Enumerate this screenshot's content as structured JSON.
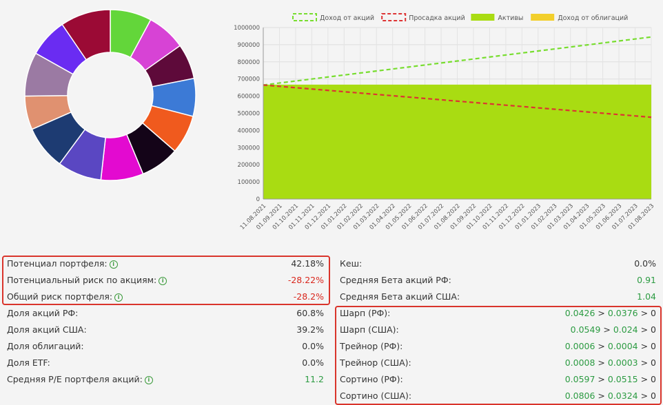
{
  "chart_data": [
    {
      "type": "pie",
      "donut": true,
      "slices": [
        {
          "value": 8.0,
          "color": "#63d63a"
        },
        {
          "value": 7.5,
          "color": "#d743d5"
        },
        {
          "value": 6.8,
          "color": "#5e0a3a"
        },
        {
          "value": 7.3,
          "color": "#3c7ad6"
        },
        {
          "value": 7.5,
          "color": "#f05a1e"
        },
        {
          "value": 7.5,
          "color": "#140418"
        },
        {
          "value": 8.2,
          "color": "#e30ad0"
        },
        {
          "value": 8.5,
          "color": "#5a47c2"
        },
        {
          "value": 8.5,
          "color": "#1d3b72"
        },
        {
          "value": 6.5,
          "color": "#e09170"
        },
        {
          "value": 8.5,
          "color": "#9b7aa3"
        },
        {
          "value": 7.5,
          "color": "#6a2cf2"
        },
        {
          "value": 9.7,
          "color": "#9b0a35"
        }
      ]
    },
    {
      "type": "line",
      "legend_position": "top",
      "legend": [
        {
          "name": "Доход от акций",
          "style": "dashed",
          "color": "#77dd2e"
        },
        {
          "name": "Просадка акций",
          "style": "dashed",
          "color": "#dd3333"
        },
        {
          "name": "Активы",
          "style": "fill",
          "color": "#a9dc12"
        },
        {
          "name": "Доход от облигаций",
          "style": "fill",
          "color": "#f2cf2b"
        }
      ],
      "x": [
        "11.08.2021",
        "01.09.2021",
        "01.10.2021",
        "01.11.2021",
        "01.12.2021",
        "01.01.2022",
        "01.02.2022",
        "01.03.2022",
        "01.04.2022",
        "01.05.2022",
        "01.06.2022",
        "01.07.2022",
        "01.08.2022",
        "01.09.2022",
        "01.10.2022",
        "01.11.2022",
        "01.12.2022",
        "01.01.2023",
        "01.02.2023",
        "01.03.2023",
        "01.04.2023",
        "01.05.2023",
        "01.06.2023",
        "01.07.2023",
        "01.08.2023"
      ],
      "ylim": [
        0,
        1000000
      ],
      "yticks": [
        "0",
        "100000",
        "200000",
        "300000",
        "400000",
        "500000",
        "600000",
        "700000",
        "800000",
        "900000",
        "1000000"
      ],
      "grid": true,
      "series": [
        {
          "name": "Активы",
          "type": "area",
          "start": 667000,
          "end": 667000
        },
        {
          "name": "Доход от акций",
          "type": "dashed",
          "start": 665000,
          "end": 945000
        },
        {
          "name": "Просадка акций",
          "type": "dashed",
          "start": 665000,
          "end": 477000
        }
      ]
    }
  ],
  "left_top": [
    {
      "label": "Потенциал портфеля:",
      "value": "42.18%",
      "tone": "plain",
      "info": true
    },
    {
      "label": "Потенциальный риск по акциям:",
      "value": "-28.22%",
      "tone": "neg",
      "info": true
    },
    {
      "label": "Общий риск портфеля:",
      "value": "-28.2%",
      "tone": "neg",
      "info": true
    }
  ],
  "left_bottom": [
    {
      "label": "Доля акций РФ:",
      "value": "60.8%",
      "tone": "plain",
      "info": false
    },
    {
      "label": "Доля акций США:",
      "value": "39.2%",
      "tone": "plain",
      "info": false
    },
    {
      "label": "Доля облигаций:",
      "value": "0.0%",
      "tone": "plain",
      "info": false
    },
    {
      "label": "Доля ETF:",
      "value": "0.0%",
      "tone": "plain",
      "info": false
    },
    {
      "label": "Средняя P/E портфеля акций:",
      "value": "11.2",
      "tone": "pos",
      "info": true
    }
  ],
  "right_top": [
    {
      "label": "Кеш:",
      "value": "0.0%",
      "tone": "plain"
    },
    {
      "label": "Средняя Бета акций РФ:",
      "value": "0.91",
      "tone": "pos"
    },
    {
      "label": "Средняя Бета акций США:",
      "value": "1.04",
      "tone": "pos"
    }
  ],
  "ratios": [
    {
      "label": "Шарп (РФ):",
      "a": "0.0426",
      "b": "0.0376",
      "c": "0"
    },
    {
      "label": "Шарп (США):",
      "a": "0.0549",
      "b": "0.024",
      "c": "0"
    },
    {
      "label": "Трейнор (РФ):",
      "a": "0.0006",
      "b": "0.0004",
      "c": "0"
    },
    {
      "label": "Трейнор (США):",
      "a": "0.0008",
      "b": "0.0003",
      "c": "0"
    },
    {
      "label": "Сортино (РФ):",
      "a": "0.0597",
      "b": "0.0515",
      "c": "0"
    },
    {
      "label": "Сортино (США):",
      "a": "0.0806",
      "b": "0.0324",
      "c": "0"
    }
  ],
  "compare_symbol": ">",
  "info_icon_glyph": "i"
}
